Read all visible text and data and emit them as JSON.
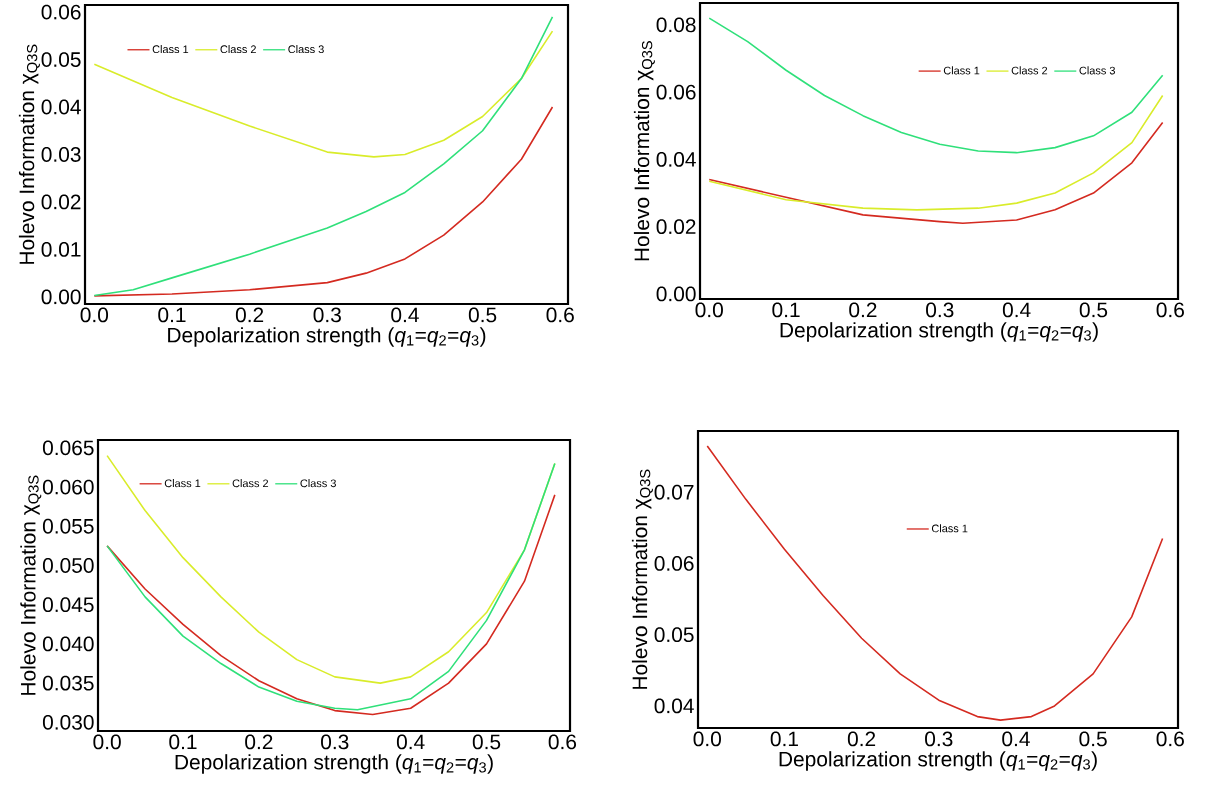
{
  "chart_data": [
    {
      "type": "line",
      "xlabel": "Depolarization strength (*q*$_{1}$=*q*$_{2}$=*q*$_{3}$)",
      "ylabel": "Holevo Information χ$_{Q3S}$",
      "legend": "top left",
      "xlim": [
        -0.012,
        0.61
      ],
      "ylim": [
        -0.0015,
        0.0615
      ],
      "xticks": [
        {
          "value": 0,
          "label": "0.0"
        },
        {
          "value": 0.1,
          "label": "0.1"
        },
        {
          "value": 0.2,
          "label": "0.2"
        },
        {
          "value": 0.3,
          "label": "0.3"
        },
        {
          "value": 0.4,
          "label": "0.4"
        },
        {
          "value": 0.5,
          "label": "0.5"
        },
        {
          "value": 0.6,
          "label": "0.6"
        }
      ],
      "yticks": [
        {
          "value": 0,
          "label": "0.00"
        },
        {
          "value": 0.01,
          "label": "0.01"
        },
        {
          "value": 0.02,
          "label": "0.02"
        },
        {
          "value": 0.03,
          "label": "0.03"
        },
        {
          "value": 0.04,
          "label": "0.04"
        },
        {
          "value": 0.05,
          "label": "0.05"
        },
        {
          "value": 0.06,
          "label": "0.06"
        }
      ],
      "series": [
        {
          "name": "Class 1",
          "color": "#d42a20",
          "x": [
            0,
            0.1,
            0.2,
            0.3,
            0.35,
            0.4,
            0.45,
            0.5,
            0.55,
            0.59
          ],
          "values": [
            0.0002,
            0.0006,
            0.0015,
            0.003,
            0.005,
            0.008,
            0.013,
            0.02,
            0.029,
            0.04
          ]
        },
        {
          "name": "Class 2",
          "color": "#d9ec2a",
          "x": [
            0,
            0.1,
            0.2,
            0.3,
            0.36,
            0.4,
            0.45,
            0.5,
            0.55,
            0.59
          ],
          "values": [
            0.049,
            0.042,
            0.036,
            0.0305,
            0.0295,
            0.03,
            0.033,
            0.038,
            0.046,
            0.056
          ]
        },
        {
          "name": "Class 3",
          "color": "#2fe07a",
          "x": [
            0,
            0.05,
            0.1,
            0.2,
            0.3,
            0.35,
            0.4,
            0.45,
            0.5,
            0.55,
            0.59
          ],
          "values": [
            0.0003,
            0.0015,
            0.004,
            0.009,
            0.0145,
            0.018,
            0.022,
            0.028,
            0.035,
            0.046,
            0.059
          ]
        }
      ]
    },
    {
      "type": "line",
      "xlabel": "Depolarization strength (*q*$_{1}$=*q*$_{2}$=*q*$_{3}$)",
      "ylabel": "Holevo Information χ$_{Q3S}$",
      "legend": "top right",
      "xlim": [
        -0.012,
        0.61
      ],
      "ylim": [
        -0.0015,
        0.0865
      ],
      "xticks": [
        {
          "value": 0,
          "label": "0.0"
        },
        {
          "value": 0.1,
          "label": "0.1"
        },
        {
          "value": 0.2,
          "label": "0.2"
        },
        {
          "value": 0.3,
          "label": "0.3"
        },
        {
          "value": 0.4,
          "label": "0.4"
        },
        {
          "value": 0.5,
          "label": "0.5"
        },
        {
          "value": 0.6,
          "label": "0.6"
        }
      ],
      "yticks": [
        {
          "value": 0,
          "label": "0.00"
        },
        {
          "value": 0.02,
          "label": "0.02"
        },
        {
          "value": 0.04,
          "label": "0.04"
        },
        {
          "value": 0.06,
          "label": "0.06"
        },
        {
          "value": 0.08,
          "label": "0.08"
        }
      ],
      "series": [
        {
          "name": "Class 1",
          "color": "#d42a20",
          "x": [
            0,
            0.2,
            0.3,
            0.33,
            0.4,
            0.45,
            0.5,
            0.55,
            0.59
          ],
          "values": [
            0.034,
            0.0235,
            0.0215,
            0.021,
            0.022,
            0.025,
            0.03,
            0.039,
            0.051
          ]
        },
        {
          "name": "Class 2",
          "color": "#d9ec2a",
          "x": [
            0,
            0.1,
            0.2,
            0.27,
            0.35,
            0.4,
            0.45,
            0.5,
            0.55,
            0.59
          ],
          "values": [
            0.0335,
            0.028,
            0.0255,
            0.025,
            0.0255,
            0.027,
            0.03,
            0.036,
            0.045,
            0.059
          ]
        },
        {
          "name": "Class 3",
          "color": "#2fe07a",
          "x": [
            0,
            0.05,
            0.1,
            0.15,
            0.2,
            0.25,
            0.3,
            0.35,
            0.4,
            0.45,
            0.5,
            0.55,
            0.59
          ],
          "values": [
            0.082,
            0.075,
            0.0665,
            0.059,
            0.053,
            0.048,
            0.0445,
            0.0425,
            0.042,
            0.0435,
            0.047,
            0.054,
            0.065
          ]
        }
      ]
    },
    {
      "type": "line",
      "xlabel": "Depolarization strength (*q*$_{1}$=*q*$_{2}$=*q*$_{3}$)",
      "ylabel": "Holevo Information χ$_{Q3S}$",
      "legend": "top left",
      "xlim": [
        -0.012,
        0.61
      ],
      "ylim": [
        0.0289,
        0.066
      ],
      "xticks": [
        {
          "value": 0,
          "label": "0.0"
        },
        {
          "value": 0.1,
          "label": "0.1"
        },
        {
          "value": 0.2,
          "label": "0.2"
        },
        {
          "value": 0.3,
          "label": "0.3"
        },
        {
          "value": 0.4,
          "label": "0.4"
        },
        {
          "value": 0.5,
          "label": "0.5"
        },
        {
          "value": 0.6,
          "label": "0.6"
        }
      ],
      "yticks": [
        {
          "value": 0.03,
          "label": "0.030"
        },
        {
          "value": 0.035,
          "label": "0.035"
        },
        {
          "value": 0.04,
          "label": "0.040"
        },
        {
          "value": 0.045,
          "label": "0.045"
        },
        {
          "value": 0.05,
          "label": "0.050"
        },
        {
          "value": 0.055,
          "label": "0.055"
        },
        {
          "value": 0.06,
          "label": "0.060"
        },
        {
          "value": 0.065,
          "label": "0.065"
        }
      ],
      "series": [
        {
          "name": "Class 1",
          "color": "#d42a20",
          "x": [
            0,
            0.05,
            0.1,
            0.15,
            0.2,
            0.25,
            0.3,
            0.35,
            0.4,
            0.45,
            0.5,
            0.55,
            0.59
          ],
          "values": [
            0.0525,
            0.047,
            0.0425,
            0.0385,
            0.0353,
            0.033,
            0.0315,
            0.031,
            0.0318,
            0.035,
            0.04,
            0.048,
            0.059
          ]
        },
        {
          "name": "Class 2",
          "color": "#d9ec2a",
          "x": [
            0,
            0.05,
            0.1,
            0.15,
            0.2,
            0.25,
            0.3,
            0.36,
            0.4,
            0.45,
            0.5,
            0.55,
            0.59
          ],
          "values": [
            0.064,
            0.057,
            0.051,
            0.046,
            0.0415,
            0.038,
            0.0358,
            0.035,
            0.0358,
            0.039,
            0.044,
            0.052,
            0.063
          ]
        },
        {
          "name": "Class 3",
          "color": "#2fe07a",
          "x": [
            0,
            0.05,
            0.1,
            0.15,
            0.2,
            0.25,
            0.3,
            0.33,
            0.4,
            0.45,
            0.5,
            0.55,
            0.59
          ],
          "values": [
            0.0525,
            0.046,
            0.041,
            0.0375,
            0.0345,
            0.0327,
            0.0318,
            0.0316,
            0.033,
            0.0365,
            0.043,
            0.052,
            0.063
          ]
        }
      ]
    },
    {
      "type": "line",
      "xlabel": "Depolarization strength (*q*$_{1}$=*q*$_{2}$=*q*$_{3}$)",
      "ylabel": "Holevo Information χ$_{Q3S}$",
      "legend": "top",
      "xlim": [
        -0.012,
        0.61
      ],
      "ylim": [
        0.0369,
        0.0786
      ],
      "xticks": [
        {
          "value": 0,
          "label": "0.0"
        },
        {
          "value": 0.1,
          "label": "0.1"
        },
        {
          "value": 0.2,
          "label": "0.2"
        },
        {
          "value": 0.3,
          "label": "0.3"
        },
        {
          "value": 0.4,
          "label": "0.4"
        },
        {
          "value": 0.5,
          "label": "0.5"
        },
        {
          "value": 0.6,
          "label": "0.6"
        }
      ],
      "yticks": [
        {
          "value": 0.04,
          "label": "0.04"
        },
        {
          "value": 0.05,
          "label": "0.05"
        },
        {
          "value": 0.06,
          "label": "0.06"
        },
        {
          "value": 0.07,
          "label": "0.07"
        }
      ],
      "series": [
        {
          "name": "Class 1",
          "color": "#d42a20",
          "x": [
            0,
            0.05,
            0.1,
            0.15,
            0.2,
            0.25,
            0.3,
            0.35,
            0.38,
            0.42,
            0.45,
            0.5,
            0.55,
            0.59
          ],
          "values": [
            0.0765,
            0.069,
            0.062,
            0.0555,
            0.0495,
            0.0445,
            0.0408,
            0.0385,
            0.038,
            0.0385,
            0.04,
            0.0445,
            0.0525,
            0.0635
          ]
        }
      ]
    }
  ]
}
